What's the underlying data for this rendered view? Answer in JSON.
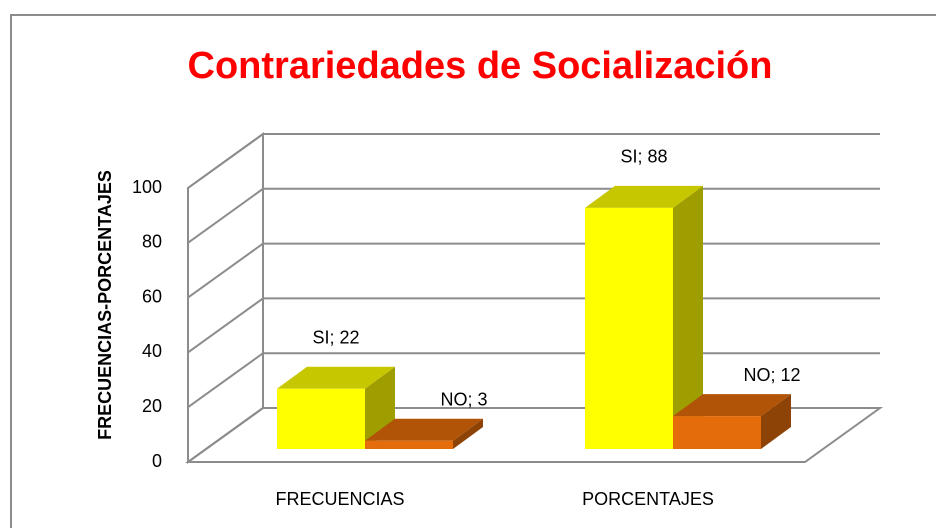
{
  "chart_data": {
    "type": "bar3d",
    "title": "Contrariedades de Socialización",
    "y_label": "FRECUENCIAS-PORCENTAJES",
    "categories": [
      "FRECUENCIAS",
      "PORCENTAJES"
    ],
    "series": [
      {
        "name": "SI",
        "color": "#ffff00",
        "values": [
          22,
          88
        ],
        "value_labels": [
          "SI; 22",
          "SI; 88"
        ]
      },
      {
        "name": "NO",
        "color": "#e46c0a",
        "values": [
          3,
          12
        ],
        "value_labels": [
          "NO; 3",
          "NO; 12"
        ]
      }
    ],
    "ylim": [
      0,
      100
    ],
    "yticks": [
      0,
      20,
      40,
      60,
      80,
      100
    ],
    "grid": true
  }
}
